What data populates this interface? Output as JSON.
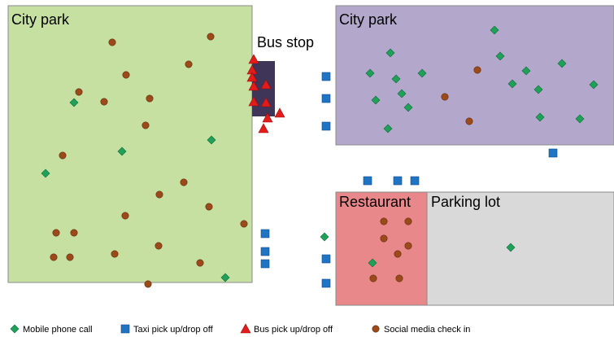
{
  "regions": [
    {
      "label": "City park"
    },
    {
      "label": "Bus stop"
    },
    {
      "label": "City park"
    },
    {
      "label": "Restaurant"
    },
    {
      "label": "Parking lot"
    }
  ],
  "legend": [
    {
      "label": "Mobile phone call"
    },
    {
      "label": "Taxi pick up/drop off"
    },
    {
      "label": "Bus pick up/drop off"
    },
    {
      "label": "Social media check in"
    }
  ]
}
